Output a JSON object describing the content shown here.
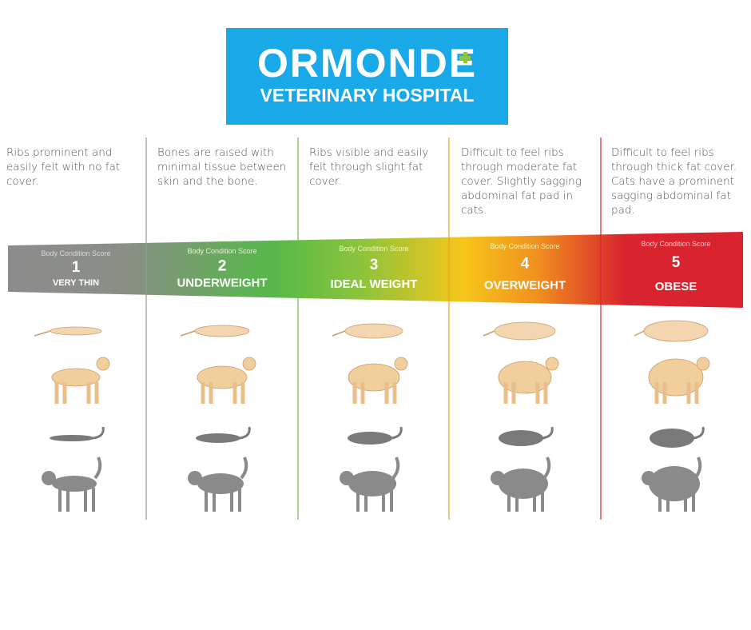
{
  "header": {
    "title": "ORMONDE",
    "subtitle": "VETERINARY HOSPITAL"
  },
  "columns": [
    {
      "description": "Ribs prominent and easily felt with no fat cover.",
      "score_label": "Body Condition Score",
      "score": 1,
      "name": "VERY THIN"
    },
    {
      "description": "Bones are raised with minimal tissue between skin and the bone.",
      "score_label": "Body Condition Score",
      "score": 2,
      "name": "UNDERWEIGHT"
    },
    {
      "description": "Ribs visible and easily felt through slight fat cover.",
      "score_label": "Body Condition Score",
      "score": 3,
      "name": "IDEAL WEIGHT"
    },
    {
      "description": "Difficult to feel ribs through moderate fat cover. Slightly sagging abdominal fat pad in cats.",
      "score_label": "Body Condition Score",
      "score": 4,
      "name": "OVERWEIGHT"
    },
    {
      "description": "Difficult to feel ribs through thick fat cover. Cats have a prominent sagging abdominal fat pad.",
      "score_label": "Body Condition Score",
      "score": 5,
      "name": "OBESE"
    }
  ]
}
